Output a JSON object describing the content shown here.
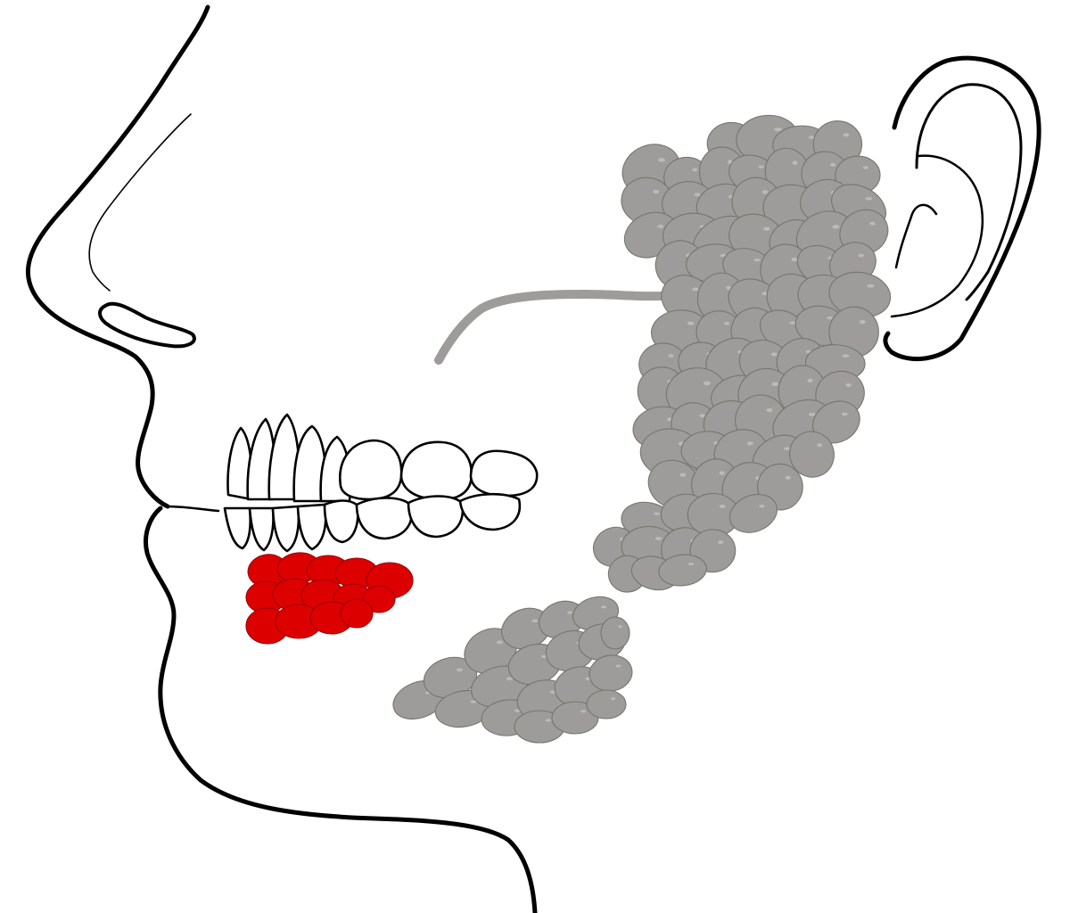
{
  "figure": {
    "type": "anatomical illustration",
    "colors": {
      "highlight": "#dd0000",
      "highlight_edge": "#9a0000",
      "gland": "#9d9c9a",
      "gland_edge": "#76756f",
      "line": "#000000",
      "background": "#ffffff"
    },
    "highlighted_structure": "sublingual-gland",
    "structures": [
      {
        "id": "parotid-gland",
        "highlighted": false
      },
      {
        "id": "parotid-duct",
        "highlighted": false
      },
      {
        "id": "submandibular-gland",
        "highlighted": false
      },
      {
        "id": "sublingual-gland",
        "highlighted": true
      }
    ]
  }
}
